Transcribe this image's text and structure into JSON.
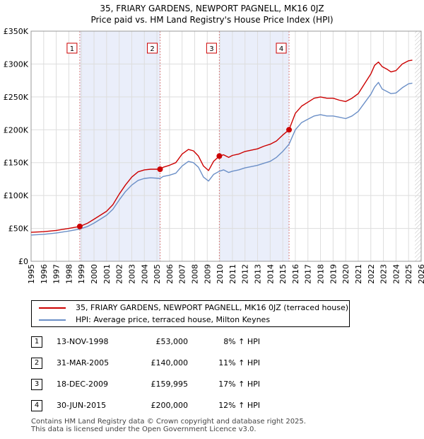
{
  "title_line1": "35, FRIARY GARDENS, NEWPORT PAGNELL, MK16 0JZ",
  "title_line2": "Price paid vs. HM Land Registry's House Price Index (HPI)",
  "chart_data": {
    "type": "line",
    "title": "35, FRIARY GARDENS, NEWPORT PAGNELL, MK16 0JZ",
    "subtitle": "Price paid vs. HM Land Registry's House Price Index (HPI)",
    "xlabel": "",
    "ylabel": "",
    "xlim": [
      1995,
      2026
    ],
    "ylim": [
      0,
      350000
    ],
    "x_ticks": [
      "1995",
      "1996",
      "1997",
      "1998",
      "1999",
      "2000",
      "2001",
      "2002",
      "2003",
      "2004",
      "2005",
      "2006",
      "2007",
      "2008",
      "2009",
      "2010",
      "2011",
      "2012",
      "2013",
      "2014",
      "2015",
      "2016",
      "2017",
      "2018",
      "2019",
      "2020",
      "2021",
      "2022",
      "2023",
      "2024",
      "2025",
      "2026"
    ],
    "y_ticks": [
      {
        "value": 0,
        "label": "£0"
      },
      {
        "value": 50000,
        "label": "£50K"
      },
      {
        "value": 100000,
        "label": "£100K"
      },
      {
        "value": 150000,
        "label": "£150K"
      },
      {
        "value": 200000,
        "label": "£200K"
      },
      {
        "value": 250000,
        "label": "£250K"
      },
      {
        "value": 300000,
        "label": "£300K"
      },
      {
        "value": 350000,
        "label": "£350K"
      }
    ],
    "grid": true,
    "shaded_spans": [
      [
        1998.87,
        2005.25
      ],
      [
        2009.96,
        2015.5
      ]
    ],
    "future_hatch_from": 2025.5,
    "series": [
      {
        "name": "35, FRIARY GARDENS, NEWPORT PAGNELL, MK16 0JZ (terraced house)",
        "color": "#cc0000",
        "x": [
          1995,
          1996,
          1997,
          1998,
          1998.87,
          1999.5,
          2000,
          2000.5,
          2001,
          2001.5,
          2002,
          2002.5,
          2003,
          2003.5,
          2004,
          2004.5,
          2005.25,
          2005.5,
          2006,
          2006.5,
          2007,
          2007.5,
          2007.9,
          2008.3,
          2008.7,
          2009.1,
          2009.5,
          2009.96,
          2010.3,
          2010.7,
          2011,
          2011.5,
          2012,
          2012.5,
          2013,
          2013.5,
          2014,
          2014.5,
          2015,
          2015.5,
          2016,
          2016.5,
          2017,
          2017.5,
          2018,
          2018.5,
          2019,
          2019.5,
          2020,
          2020.5,
          2021,
          2021.5,
          2022,
          2022.3,
          2022.6,
          2022.9,
          2023.3,
          2023.6,
          2024,
          2024.5,
          2025,
          2025.3
        ],
        "values": [
          44000,
          45000,
          47000,
          50000,
          53000,
          58000,
          64000,
          70000,
          76000,
          86000,
          102000,
          116000,
          128000,
          136000,
          139000,
          140000,
          140000,
          143000,
          146000,
          150000,
          163000,
          170000,
          168000,
          160000,
          145000,
          138000,
          152000,
          159995,
          162000,
          158000,
          161000,
          163000,
          167000,
          169000,
          171000,
          175000,
          178000,
          183000,
          192000,
          200000,
          225000,
          236000,
          242000,
          248000,
          250000,
          248000,
          248000,
          245000,
          243000,
          248000,
          255000,
          270000,
          285000,
          298000,
          303000,
          296000,
          292000,
          288000,
          290000,
          300000,
          305000,
          306000
        ]
      },
      {
        "name": "HPI: Average price, terraced house, Milton Keynes",
        "color": "#6b8fc7",
        "x": [
          1995,
          1996,
          1997,
          1998,
          1998.87,
          1999.5,
          2000,
          2000.5,
          2001,
          2001.5,
          2002,
          2002.5,
          2003,
          2003.5,
          2004,
          2004.5,
          2005.25,
          2005.5,
          2006,
          2006.5,
          2007,
          2007.5,
          2007.9,
          2008.3,
          2008.7,
          2009.1,
          2009.5,
          2009.96,
          2010.3,
          2010.7,
          2011,
          2011.5,
          2012,
          2012.5,
          2013,
          2013.5,
          2014,
          2014.5,
          2015,
          2015.5,
          2016,
          2016.5,
          2017,
          2017.5,
          2018,
          2018.5,
          2019,
          2019.5,
          2020,
          2020.5,
          2021,
          2021.5,
          2022,
          2022.3,
          2022.6,
          2022.9,
          2023.3,
          2023.6,
          2024,
          2024.5,
          2025,
          2025.3
        ],
        "values": [
          40000,
          41000,
          43000,
          46000,
          49000,
          53000,
          58000,
          64000,
          70000,
          79000,
          93000,
          106000,
          116000,
          123000,
          126000,
          127000,
          126000,
          129000,
          131000,
          134000,
          145000,
          152000,
          150000,
          143000,
          128000,
          122000,
          132000,
          137000,
          139000,
          135000,
          137000,
          139000,
          142000,
          144000,
          146000,
          149000,
          152000,
          158000,
          167000,
          178000,
          200000,
          211000,
          216000,
          221000,
          223000,
          221000,
          221000,
          219000,
          217000,
          221000,
          228000,
          241000,
          254000,
          265000,
          272000,
          262000,
          258000,
          255000,
          256000,
          264000,
          270000,
          271000
        ]
      }
    ],
    "markers": [
      {
        "label": "1",
        "x": 1998.87,
        "y": 53000
      },
      {
        "label": "2",
        "x": 2005.25,
        "y": 140000
      },
      {
        "label": "3",
        "x": 2009.96,
        "y": 159995
      },
      {
        "label": "4",
        "x": 2015.5,
        "y": 200000
      }
    ]
  },
  "legend": [
    {
      "label": "35, FRIARY GARDENS, NEWPORT PAGNELL, MK16 0JZ (terraced house)",
      "color": "#cc0000"
    },
    {
      "label": "HPI: Average price, terraced house, Milton Keynes",
      "color": "#6b8fc7"
    }
  ],
  "events": [
    {
      "num": "1",
      "date": "13-NOV-1998",
      "price": "£53,000",
      "delta": "8% ↑ HPI"
    },
    {
      "num": "2",
      "date": "31-MAR-2005",
      "price": "£140,000",
      "delta": "11% ↑ HPI"
    },
    {
      "num": "3",
      "date": "18-DEC-2009",
      "price": "£159,995",
      "delta": "17% ↑ HPI"
    },
    {
      "num": "4",
      "date": "30-JUN-2015",
      "price": "£200,000",
      "delta": "12% ↑ HPI"
    }
  ],
  "footer_line1": "Contains HM Land Registry data © Crown copyright and database right 2025.",
  "footer_line2": "This data is licensed under the Open Government Licence v3.0."
}
